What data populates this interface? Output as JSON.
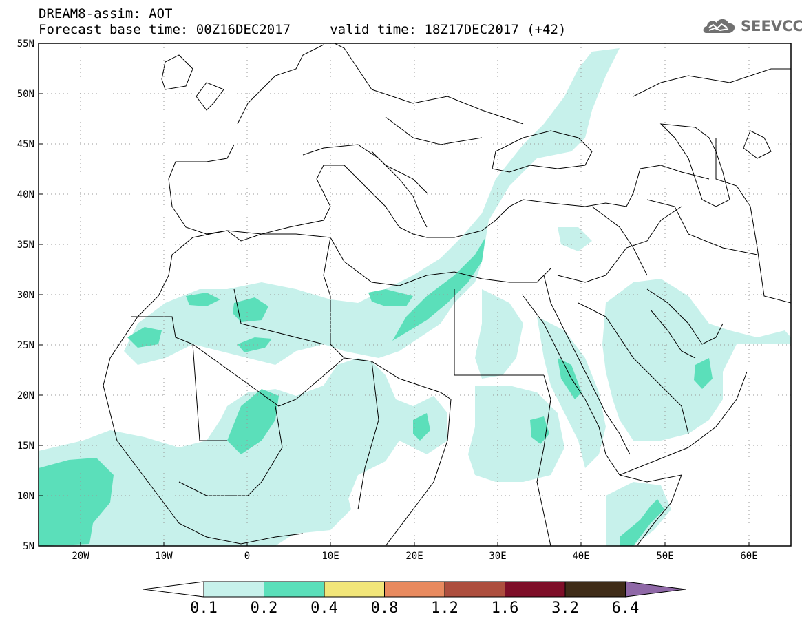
{
  "header": {
    "line1": "DREAM8-assim: AOT",
    "line2": "Forecast base time: 00Z16DEC2017     valid time: 18Z17DEC2017 (+42)"
  },
  "logo": {
    "text": "SEEVCCC",
    "icon": "cloud-logo-icon"
  },
  "map": {
    "lat_labels": [
      "55N",
      "50N",
      "45N",
      "40N",
      "35N",
      "30N",
      "25N",
      "20N",
      "15N",
      "10N",
      "5N"
    ],
    "lon_labels": [
      "20W",
      "10W",
      "0",
      "10E",
      "20E",
      "30E",
      "40E",
      "50E",
      "60E"
    ],
    "land_color": "#ffffff",
    "border_color": "#000000"
  },
  "colorbar": {
    "labels": [
      "0.1",
      "0.2",
      "0.4",
      "0.8",
      "1.2",
      "1.6",
      "3.2",
      "6.4"
    ],
    "colors": [
      "#ffffff",
      "#c7f1eb",
      "#5bdfba",
      "#f2e67a",
      "#e88a5f",
      "#ad4e3e",
      "#7e0e28",
      "#3f2c18",
      "#8f68a7"
    ]
  }
}
